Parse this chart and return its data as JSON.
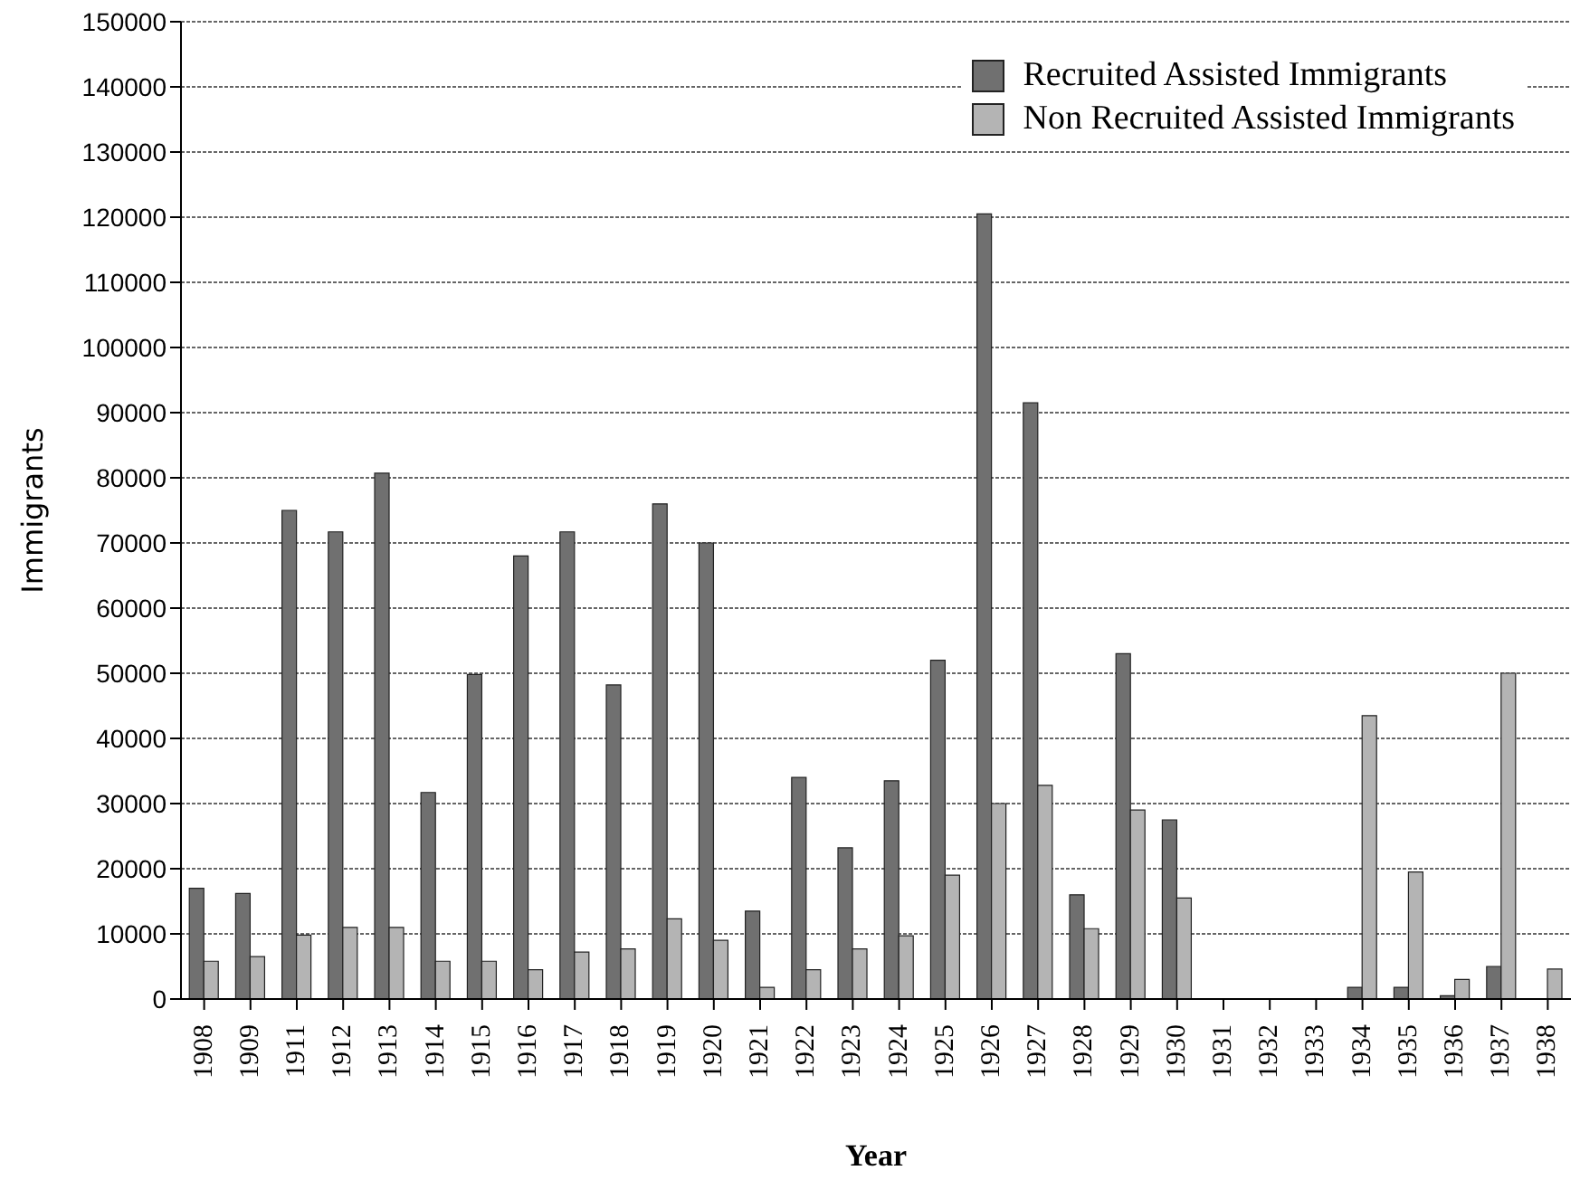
{
  "chart_data": {
    "type": "bar",
    "xlabel": "Year",
    "ylabel": "Immigrants",
    "categories": [
      "1908",
      "1909",
      "1911",
      "1912",
      "1913",
      "1914",
      "1915",
      "1916",
      "1917",
      "1918",
      "1919",
      "1920",
      "1921",
      "1922",
      "1923",
      "1924",
      "1925",
      "1926",
      "1927",
      "1928",
      "1929",
      "1930",
      "1931",
      "1932",
      "1933",
      "1934",
      "1935",
      "1936",
      "1937",
      "1938"
    ],
    "series": [
      {
        "name": "Recruited Assisted Immigrants",
        "color": "#707070",
        "values": [
          17000,
          16200,
          75000,
          71700,
          80700,
          31700,
          49800,
          68000,
          71700,
          48200,
          76000,
          70000,
          13500,
          34000,
          23200,
          33500,
          52000,
          120500,
          91500,
          16000,
          53000,
          27500,
          0,
          0,
          0,
          1800,
          1800,
          500,
          5000,
          0
        ]
      },
      {
        "name": "Non Recruited Assisted Immigrants",
        "color": "#b4b4b4",
        "values": [
          5800,
          6500,
          9800,
          11000,
          11000,
          5800,
          5800,
          4500,
          7200,
          7700,
          12300,
          9000,
          1800,
          4500,
          7700,
          9700,
          19000,
          30000,
          32800,
          10800,
          29000,
          15500,
          0,
          0,
          0,
          43500,
          19500,
          3000,
          50000,
          4600
        ]
      }
    ],
    "ylim": [
      0,
      150000
    ],
    "yticks": [
      0,
      10000,
      20000,
      30000,
      40000,
      50000,
      60000,
      70000,
      80000,
      90000,
      100000,
      110000,
      120000,
      130000,
      140000,
      150000
    ],
    "grid": "y",
    "legend": "top right"
  }
}
